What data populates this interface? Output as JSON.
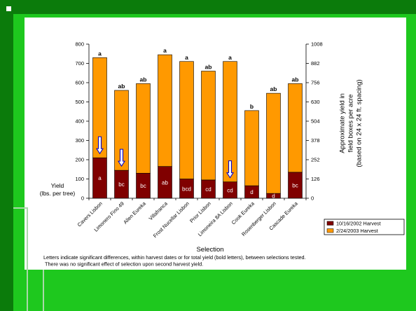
{
  "slide": {
    "background_color": "#1ec81e",
    "frame_color": "#0b7b0b",
    "panel_color": "#ffffff",
    "decoration_color": "#aad8aa"
  },
  "footnote": {
    "line1": "Letters indicate significant differences, within harvest dates or for total yield (bold letters), between selections tested.",
    "line2": "There was no significant effect of selection upon second harvest yield."
  },
  "chart_data": {
    "type": "bar",
    "stacked": true,
    "categories": [
      "Cavers Lisbon",
      "Limonero Fino 49",
      "Allen Eureka",
      "Villafranca",
      "Frost Nucellar Lisbon",
      "Prior Lisbon",
      "Limoneira 8A Lisbon",
      "Cook Eureka",
      "Rosenberger Lisbon",
      "Cascade Eureka"
    ],
    "series": [
      {
        "name": "10/16/2002 Harvest",
        "color": "#800000",
        "values": [
          210,
          145,
          130,
          165,
          100,
          95,
          85,
          65,
          25,
          135
        ],
        "letters": [
          "a",
          "bc",
          "bc",
          "ab",
          "bcd",
          "cd",
          "cd",
          "d",
          "d",
          "bc"
        ]
      },
      {
        "name": "2/24/2003 Harvest",
        "color": "#ff9900",
        "values": [
          520,
          415,
          465,
          580,
          610,
          565,
          625,
          390,
          520,
          460
        ]
      }
    ],
    "total_letters": [
      "a",
      "ab",
      "ab",
      "a",
      "a",
      "ab",
      "a",
      "b",
      "ab",
      "ab"
    ],
    "harvest1_arrows": [
      true,
      true,
      false,
      false,
      false,
      false,
      true,
      false,
      false,
      false
    ],
    "arrow_color": "#0000cc",
    "xlabel": "Selection",
    "ylabel": [
      "Yield",
      "(lbs. per tree)"
    ],
    "ylim": [
      0,
      800
    ],
    "yticks": [
      0,
      100,
      200,
      300,
      400,
      500,
      600,
      700,
      800
    ],
    "y2label": [
      "Approximate yield in",
      "field boxes per acre",
      "(based on 24 x 24 ft. spacing)"
    ],
    "y2lim": [
      0,
      1008
    ],
    "y2ticks": [
      0,
      126,
      252,
      378,
      504,
      630,
      756,
      882,
      1008
    ],
    "grid": false,
    "legend": "bottom-right"
  }
}
